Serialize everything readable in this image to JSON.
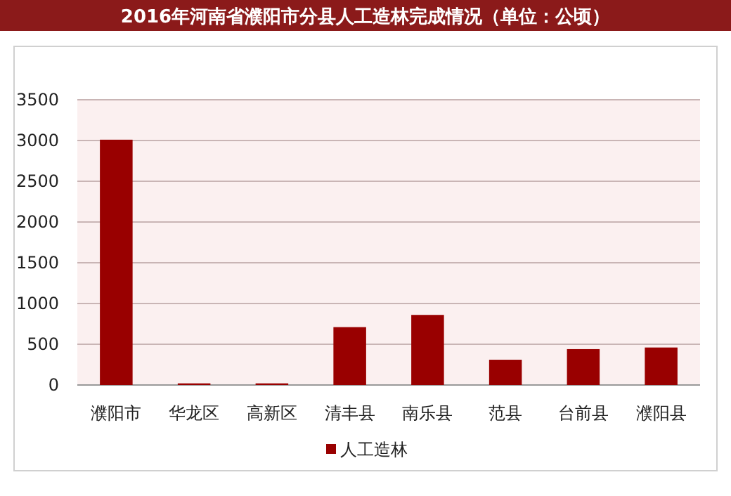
{
  "chart_data": {
    "type": "bar",
    "title": "2016年河南省濮阳市分县人工造林完成情况（单位：公顷）",
    "categories": [
      "濮阳市",
      "华龙区",
      "高新区",
      "清丰县",
      "南乐县",
      "范县",
      "台前县",
      "濮阳县"
    ],
    "series": [
      {
        "name": "人工造林",
        "color": "#990000",
        "values": [
          3010,
          20,
          20,
          710,
          860,
          310,
          440,
          460
        ]
      }
    ],
    "ylim": [
      0,
      3500
    ],
    "yticks": [
      0,
      500,
      1000,
      1500,
      2000,
      2500,
      3000,
      3500
    ],
    "grid": "y",
    "legend": "bottom"
  }
}
